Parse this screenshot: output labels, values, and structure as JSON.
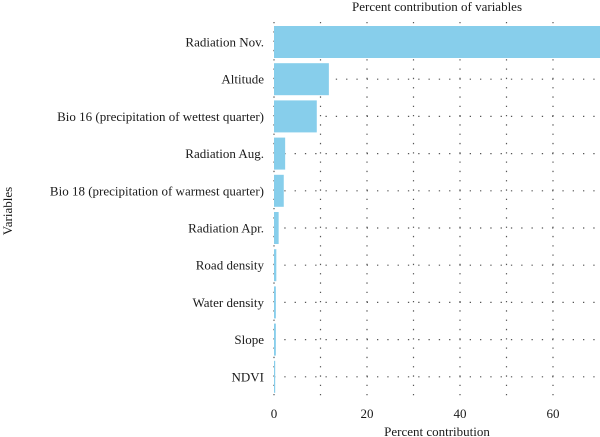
{
  "chart_data": {
    "type": "bar",
    "orientation": "horizontal",
    "title": "Percent contribution of variables",
    "xlabel": "Percent contribution",
    "ylabel": "Variables",
    "categories": [
      "Radiation Nov.",
      "Altitude",
      "Bio 16 (precipitation of wettest quarter)",
      "Radiation Aug.",
      "Bio 18 (precipitation of warmest quarter)",
      "Radiation Apr.",
      "Road density",
      "Water density",
      "Slope",
      "NDVI"
    ],
    "values": [
      71.8,
      11.8,
      9.2,
      2.4,
      2.1,
      1.0,
      0.5,
      0.4,
      0.4,
      0.2
    ],
    "xlim": [
      0,
      73
    ],
    "xticks": [
      0,
      20,
      40,
      60
    ],
    "grid": "dotted",
    "bar_color": "#87ceeb",
    "grid_color": "#555555"
  }
}
